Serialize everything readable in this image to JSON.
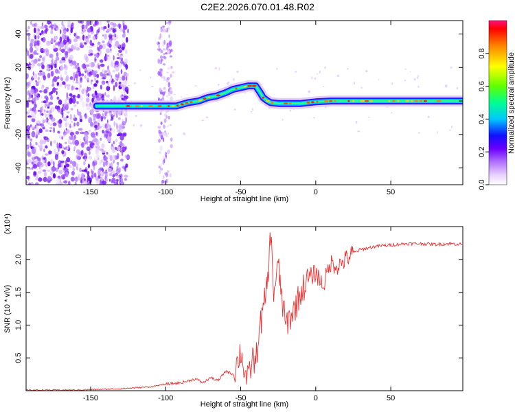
{
  "title": "C2E2.2026.070.01.48.R02",
  "chart_data": [
    {
      "type": "heatmap",
      "xlabel": "Height of straight line (km)",
      "ylabel": "Frequency (Hz)",
      "xlim": [
        -193,
        98
      ],
      "ylim": [
        -50,
        48
      ],
      "x_ticks": [
        -150,
        -100,
        -50,
        0,
        50
      ],
      "y_ticks": [
        -40,
        -20,
        0,
        20,
        40
      ],
      "colorbar": {
        "label": "Normalized spectral amplitude",
        "range": [
          0.0,
          1.0
        ],
        "ticks": [
          0.0,
          0.2,
          0.4,
          0.6,
          0.8
        ],
        "colors": [
          "#ffffff",
          "#e0b8ff",
          "#9b4dff",
          "#6a00ff",
          "#0000ff",
          "#00c8ff",
          "#00ff7f",
          "#7fff00",
          "#ffff00",
          "#ff8000",
          "#ff0000"
        ]
      },
      "ridge": {
        "x": [
          -146,
          -128,
          -120,
          -110,
          -100,
          -93,
          -85,
          -78,
          -72,
          -66,
          -60,
          -55,
          -50,
          -45,
          -40,
          -37,
          -35,
          -32,
          -30,
          -25,
          -20,
          -10,
          0,
          10,
          30,
          60,
          98
        ],
        "y": [
          -3,
          -3,
          -3,
          -3,
          -3,
          -3,
          -1,
          0,
          2,
          3,
          5,
          7,
          8,
          9,
          9,
          5,
          2,
          0,
          -1,
          -1.5,
          -1.5,
          -1.5,
          -0.5,
          0,
          0,
          0,
          0
        ]
      },
      "noise_region_km": [
        -193,
        -125
      ],
      "noise_stripe_km": [
        -105,
        -96
      ]
    },
    {
      "type": "line",
      "xlabel": "Height of straight line (km)",
      "ylabel": "SNR (10 * v/v)",
      "multiplier_label": "(x10⁴)",
      "xlim": [
        -193,
        98
      ],
      "ylim": [
        0,
        2.5
      ],
      "x_ticks": [
        -150,
        -100,
        -50,
        0,
        50
      ],
      "y_ticks": [
        0.5,
        1.0,
        1.5,
        2.0
      ],
      "y_tick_labels": [
        "0.5",
        "1.0",
        "1.5",
        "2.0"
      ],
      "color": "#e83030",
      "series": [
        {
          "x": [
            -193,
            -160,
            -130,
            -110,
            -100,
            -90,
            -80,
            -75,
            -70,
            -65,
            -60,
            -55,
            -52,
            -50,
            -47,
            -45,
            -42,
            -40,
            -38,
            -35,
            -32,
            -30,
            -28,
            -25,
            -22,
            -20,
            -15,
            -10,
            -5,
            0,
            5,
            10,
            15,
            20,
            25,
            30,
            40,
            50,
            60,
            70,
            80,
            90,
            98
          ],
          "y": [
            0.01,
            0.01,
            0.03,
            0.06,
            0.1,
            0.12,
            0.18,
            0.12,
            0.2,
            0.15,
            0.3,
            0.25,
            0.45,
            0.6,
            0.25,
            0.15,
            0.5,
            0.4,
            0.9,
            1.2,
            1.7,
            2.4,
            1.5,
            1.9,
            1.3,
            1.0,
            1.2,
            1.5,
            1.7,
            1.8,
            1.6,
            1.95,
            1.9,
            2.0,
            2.1,
            2.15,
            2.2,
            2.22,
            2.24,
            2.24,
            2.23,
            2.24,
            2.23
          ]
        }
      ]
    }
  ]
}
